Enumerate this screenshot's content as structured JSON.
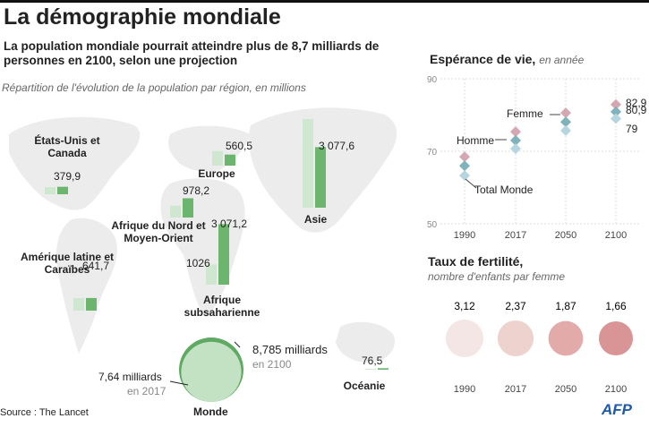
{
  "title": "La démographie mondiale",
  "subtitle": "La population mondiale pourrait atteindre plus de 8,7 milliards de personnes en 2100, selon une projection",
  "source": "Source : The Lancet",
  "credit": "AFP",
  "chart_data": [
    {
      "type": "bar",
      "subtitle": "Répartition de l'évolution de la population par région, en millions",
      "categories": [
        "États-Unis et Canada",
        "Europe",
        "Afrique du Nord et Moyen-Orient",
        "Asie",
        "Amérique latine et Caraïbes",
        "Afrique subsaharienne",
        "Océanie"
      ],
      "series": [
        {
          "color": "#cfe7cf",
          "values": [
            360,
            740,
            600,
            4500,
            640,
            1026,
            40
          ],
          "value_labels": [
            null,
            null,
            null,
            null,
            null,
            "1026",
            null
          ]
        },
        {
          "color": "#6cb56e",
          "values": [
            379.9,
            560.5,
            978.2,
            3077.6,
            641.7,
            3071.2,
            76.5
          ],
          "value_labels": [
            "379,9",
            "560,5",
            "978,2",
            "3 077,6",
            "641,7",
            "3 071,2",
            "76,5"
          ]
        }
      ]
    },
    {
      "type": "bubble",
      "title": "Monde",
      "labels": [
        "en 2017",
        "en 2100"
      ],
      "values": [
        7.64,
        8.785
      ],
      "value_labels": [
        "7,64 milliards",
        "8,785 milliards"
      ],
      "colors": [
        "#c3e2c3",
        "#5faa62"
      ]
    },
    {
      "type": "dot",
      "title": "Espérance de vie,",
      "subtitle": "en année",
      "categories": [
        "1990",
        "2017",
        "2050",
        "2100"
      ],
      "ylim": [
        50,
        90
      ],
      "yticks": [
        50,
        70,
        90
      ],
      "grid": true,
      "series": [
        {
          "name": "Femme",
          "color": "#d4a7b3",
          "values": [
            68.5,
            75.4,
            80.6,
            82.9
          ],
          "value_labels": [
            null,
            null,
            null,
            "82,9"
          ]
        },
        {
          "name": "Homme",
          "color": "#7fb2ba",
          "values": [
            66,
            73,
            78.1,
            80.9
          ],
          "value_labels": [
            null,
            null,
            null,
            "80,9"
          ]
        },
        {
          "name": "Total Monde",
          "color": "#b5d5e1",
          "values": [
            63.3,
            70.7,
            75.7,
            79
          ]
        }
      ]
    },
    {
      "type": "bubble",
      "title": "Taux de fertilité,",
      "subtitle": "nombre d'enfants par femme",
      "categories": [
        "1990",
        "2017",
        "2050",
        "2100"
      ],
      "values": [
        3.12,
        2.37,
        1.87,
        1.66
      ],
      "value_labels": [
        "3,12",
        "2,37",
        "1,87",
        "1,66"
      ],
      "colors": [
        "#f3e6e4",
        "#edd2ce",
        "#e2aaa8",
        "#d99596"
      ]
    }
  ]
}
